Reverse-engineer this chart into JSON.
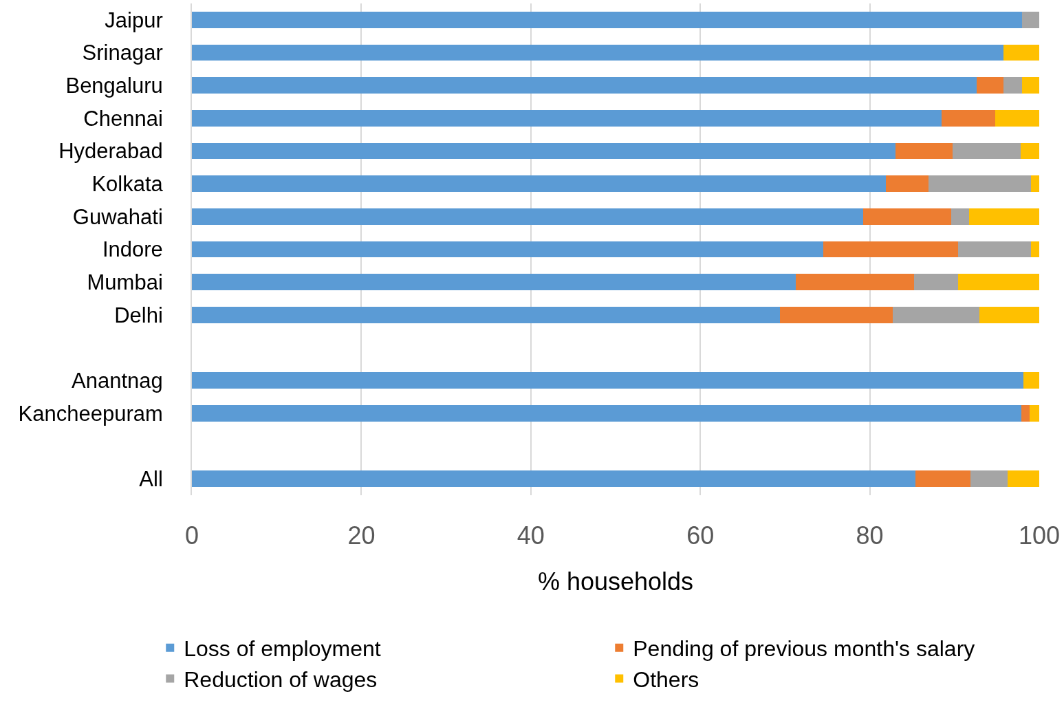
{
  "chart_data": {
    "type": "bar",
    "orientation": "horizontal",
    "stacked": true,
    "xlabel": "% households",
    "categories": [
      "Jaipur",
      "Srinagar",
      "Bengaluru",
      "Chennai",
      "Hyderabad",
      "Kolkata",
      "Guwahati",
      "Indore",
      "Mumbai",
      "Delhi",
      null,
      "Anantnag",
      "Kancheepuram",
      null,
      "All"
    ],
    "series": [
      {
        "name": "Loss of employment",
        "color": "#5b9bd5",
        "values": [
          98.0,
          95.8,
          92.6,
          88.5,
          83.0,
          81.9,
          79.2,
          74.5,
          71.3,
          69.4,
          null,
          98.1,
          97.9,
          null,
          85.4
        ]
      },
      {
        "name": "Pending of previous month's salary",
        "color": "#ed7d31",
        "values": [
          0,
          0,
          3.2,
          6.3,
          6.8,
          5.0,
          10.4,
          15.9,
          13.9,
          13.3,
          null,
          0,
          1.0,
          null,
          6.5
        ]
      },
      {
        "name": "Reduction of wages",
        "color": "#a5a5a5",
        "values": [
          2.0,
          0,
          2.2,
          0,
          8.0,
          12.1,
          2.1,
          8.6,
          5.2,
          10.2,
          null,
          0,
          0,
          null,
          4.4
        ]
      },
      {
        "name": "Others",
        "color": "#ffc000",
        "values": [
          0,
          4.2,
          2.0,
          5.2,
          2.2,
          1.0,
          8.3,
          1.0,
          9.6,
          7.1,
          null,
          1.9,
          1.1,
          null,
          3.7
        ]
      }
    ],
    "xlim": [
      0,
      100
    ],
    "xticks": [
      0,
      20,
      40,
      60,
      80,
      100
    ],
    "grid": "x",
    "legend": "bottom"
  }
}
